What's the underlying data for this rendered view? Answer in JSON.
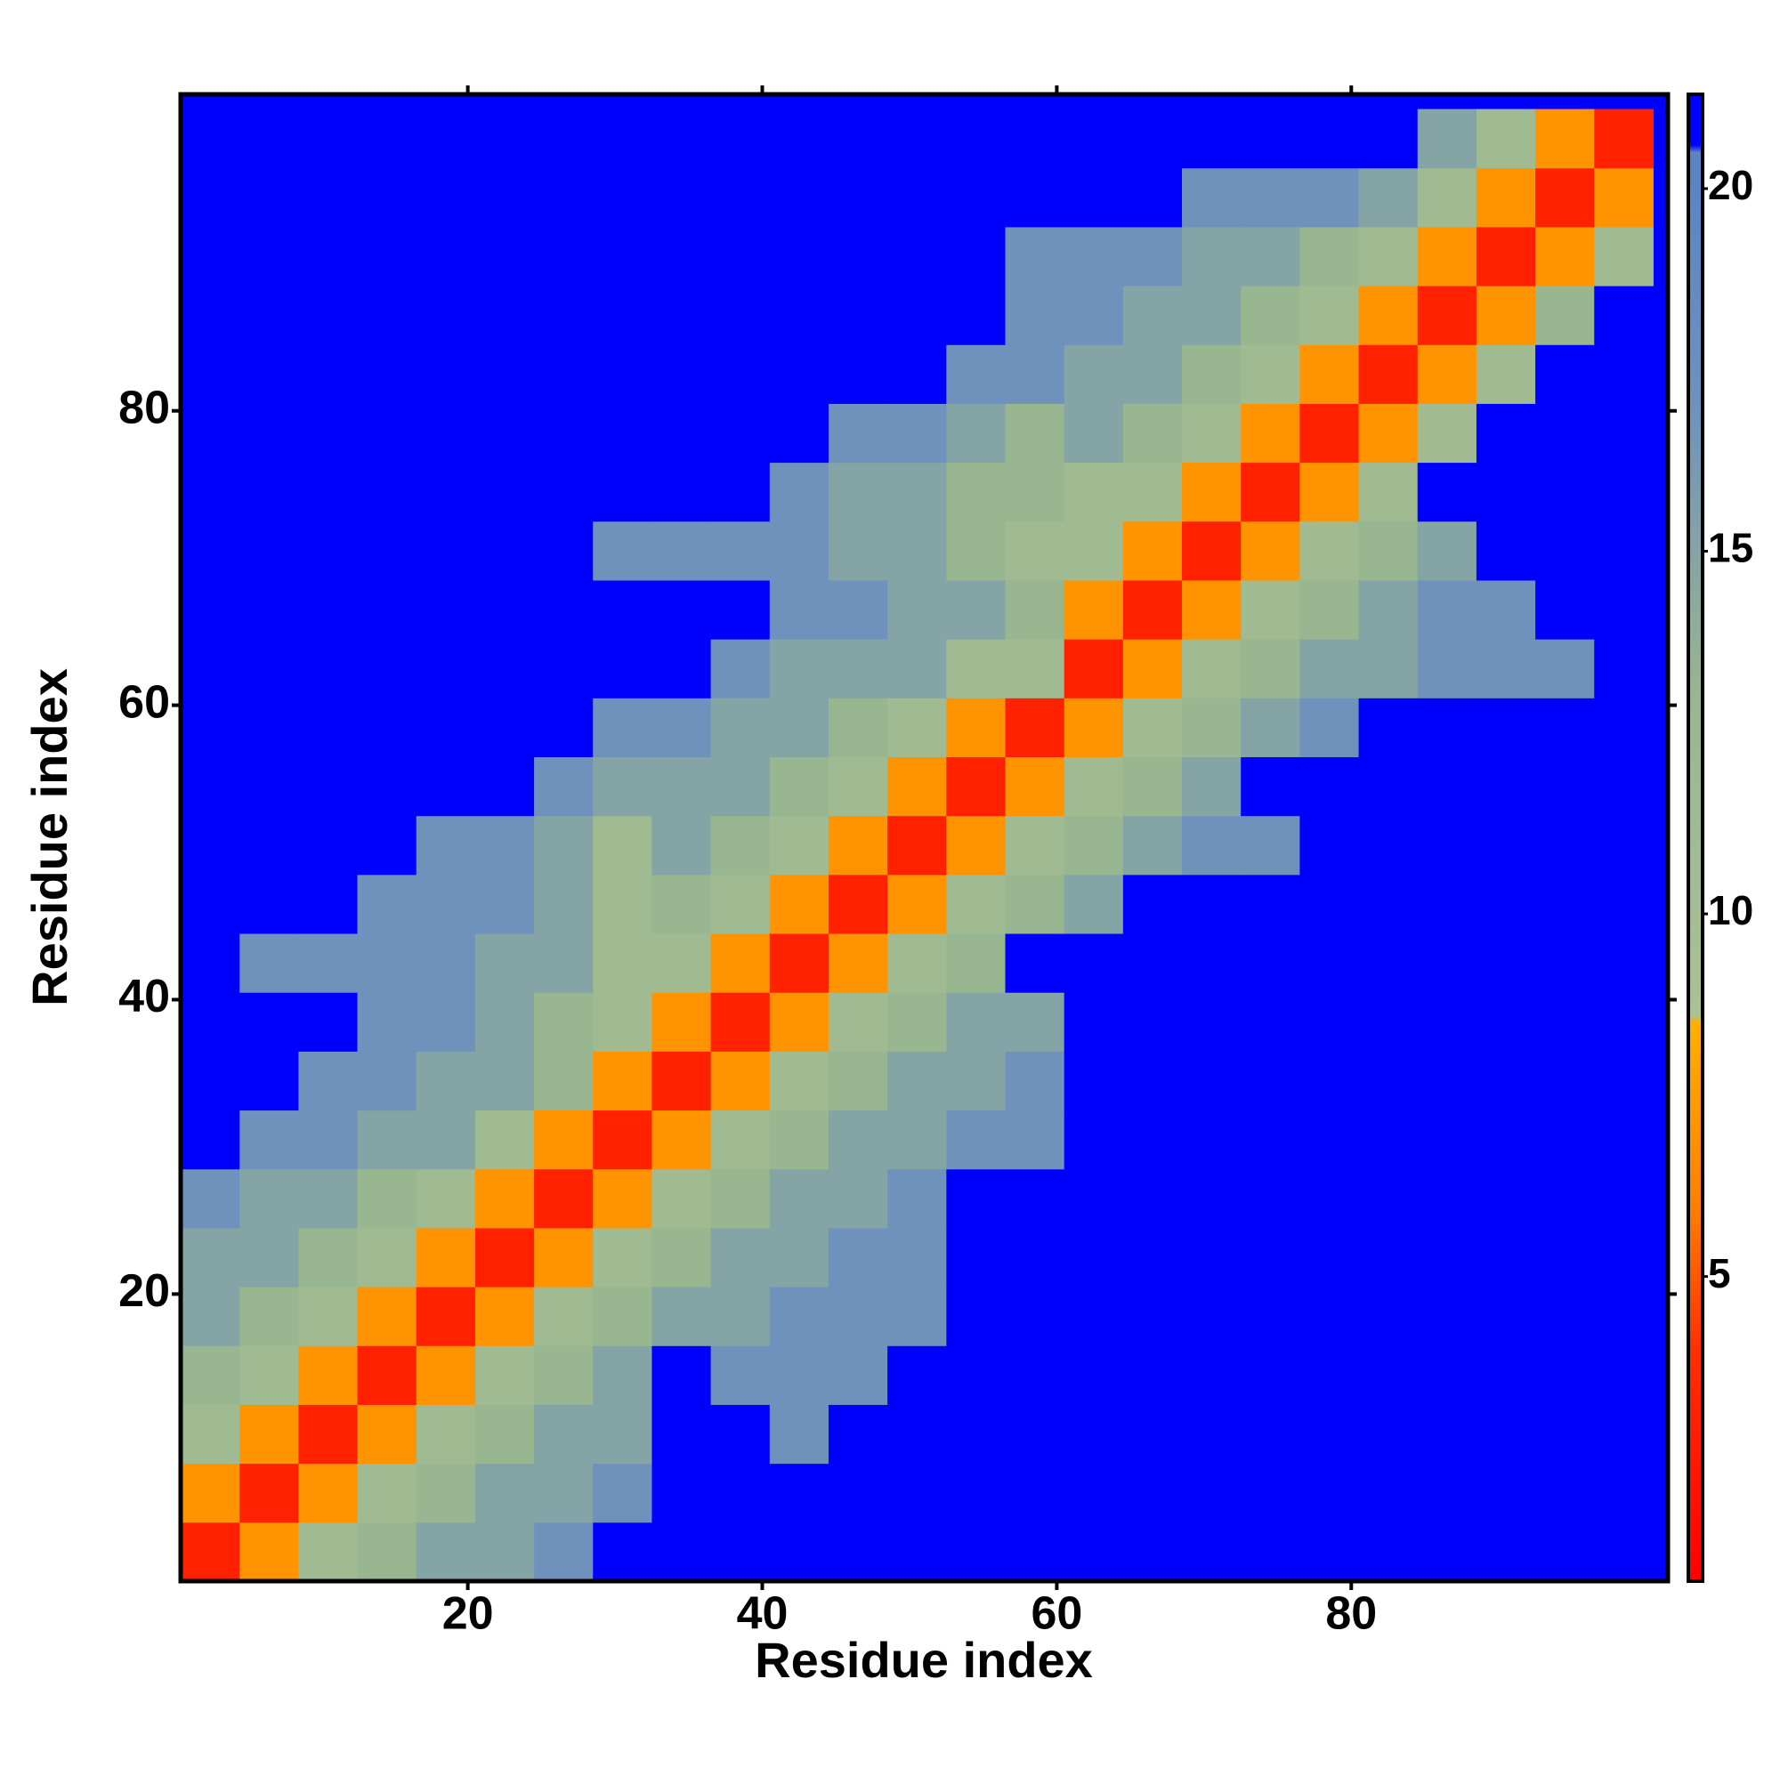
{
  "chart_data": {
    "type": "heatmap",
    "xlabel": "Residue index",
    "ylabel": "Residue index",
    "xlim": [
      0.5,
      101.5
    ],
    "ylim": [
      0.5,
      101.5
    ],
    "xticks": [
      20,
      40,
      60,
      80
    ],
    "yticks": [
      20,
      40,
      60,
      80
    ],
    "xbins": [
      0.5,
      4.5,
      8.5,
      12.5,
      16.5,
      20.5,
      24.5,
      28.5,
      32.5,
      36.5,
      40.5,
      44.5,
      48.5,
      52.5,
      56.5,
      60.5,
      64.5,
      68.5,
      72.5,
      76.5,
      80.5,
      84.5,
      88.5,
      92.5,
      96.5,
      100.5
    ],
    "ybins": [
      0.5,
      4.5,
      8.5,
      12.5,
      16.5,
      20.5,
      24.5,
      28.5,
      32.5,
      36.5,
      40.5,
      44.5,
      48.5,
      52.5,
      56.5,
      60.5,
      64.5,
      68.5,
      72.5,
      76.5,
      80.5,
      84.5,
      88.5,
      92.5,
      96.5,
      100.5
    ],
    "zlim": [
      0.8,
      21.3
    ],
    "zticks": [
      5,
      10,
      15,
      20
    ],
    "background_color": "#0000ff",
    "colorscale": [
      [
        0.8,
        "#ff0000"
      ],
      [
        4,
        "#ff3000"
      ],
      [
        6,
        "#ff8000"
      ],
      [
        8.5,
        "#ffb000"
      ],
      [
        8.6,
        "#a9c293"
      ],
      [
        13,
        "#98b68f"
      ],
      [
        17,
        "#6f92bd"
      ],
      [
        20.5,
        "#5a82c4"
      ],
      [
        20.6,
        "#0000ff"
      ],
      [
        21.3,
        "#0000ff"
      ]
    ],
    "z": [
      [
        3,
        7,
        11,
        13,
        15,
        15,
        17,
        21,
        21,
        21,
        21,
        21,
        21,
        21,
        21,
        21,
        21,
        21,
        21,
        21,
        21,
        21,
        21,
        21,
        21
      ],
      [
        7,
        3,
        7,
        11,
        13,
        15,
        15,
        17,
        21,
        21,
        21,
        21,
        21,
        21,
        21,
        21,
        21,
        21,
        21,
        21,
        21,
        21,
        21,
        21,
        21
      ],
      [
        11,
        7,
        3,
        7,
        11,
        13,
        15,
        15,
        21,
        21,
        17,
        21,
        21,
        21,
        21,
        21,
        21,
        21,
        21,
        21,
        21,
        21,
        21,
        21,
        21
      ],
      [
        13,
        11,
        7,
        3,
        7,
        11,
        13,
        15,
        21,
        17,
        17,
        17,
        21,
        21,
        21,
        21,
        21,
        21,
        21,
        21,
        21,
        21,
        21,
        21,
        21
      ],
      [
        15,
        13,
        11,
        7,
        3,
        7,
        11,
        13,
        15,
        15,
        17,
        17,
        17,
        21,
        21,
        21,
        21,
        21,
        21,
        21,
        21,
        21,
        21,
        21,
        21
      ],
      [
        15,
        15,
        13,
        11,
        7,
        3,
        7,
        11,
        13,
        15,
        15,
        17,
        17,
        21,
        21,
        21,
        21,
        21,
        21,
        21,
        21,
        21,
        21,
        21,
        21
      ],
      [
        17,
        15,
        15,
        13,
        11,
        7,
        3,
        7,
        11,
        13,
        15,
        15,
        17,
        21,
        21,
        21,
        21,
        21,
        21,
        21,
        21,
        21,
        21,
        21,
        21
      ],
      [
        21,
        17,
        17,
        15,
        15,
        11,
        7,
        3,
        7,
        11,
        13,
        15,
        15,
        17,
        17,
        21,
        21,
        21,
        21,
        21,
        21,
        21,
        21,
        21,
        21
      ],
      [
        21,
        21,
        17,
        17,
        15,
        15,
        13,
        7,
        3,
        7,
        11,
        13,
        15,
        15,
        17,
        21,
        21,
        21,
        21,
        21,
        21,
        21,
        21,
        21,
        21
      ],
      [
        21,
        21,
        21,
        17,
        17,
        15,
        13,
        11,
        7,
        3,
        7,
        11,
        13,
        15,
        15,
        21,
        21,
        21,
        21,
        21,
        21,
        21,
        21,
        21,
        21
      ],
      [
        21,
        17,
        17,
        17,
        17,
        15,
        15,
        11,
        11,
        7,
        3,
        7,
        11,
        13,
        21,
        21,
        21,
        21,
        21,
        21,
        21,
        21,
        21,
        21,
        21
      ],
      [
        21,
        21,
        21,
        17,
        17,
        17,
        15,
        11,
        13,
        11,
        7,
        3,
        7,
        11,
        13,
        15,
        21,
        21,
        21,
        21,
        21,
        21,
        21,
        21,
        21
      ],
      [
        21,
        21,
        21,
        21,
        17,
        17,
        15,
        11,
        15,
        13,
        11,
        7,
        3,
        7,
        11,
        13,
        15,
        17,
        17,
        21,
        21,
        21,
        21,
        21,
        21
      ],
      [
        21,
        21,
        21,
        21,
        21,
        21,
        17,
        15,
        15,
        15,
        13,
        11,
        7,
        3,
        7,
        11,
        13,
        15,
        21,
        21,
        21,
        21,
        21,
        21,
        21
      ],
      [
        21,
        21,
        21,
        21,
        21,
        21,
        21,
        17,
        17,
        15,
        15,
        13,
        11,
        7,
        3,
        7,
        11,
        13,
        15,
        17,
        21,
        21,
        21,
        21,
        21
      ],
      [
        21,
        21,
        21,
        21,
        21,
        21,
        21,
        21,
        21,
        17,
        15,
        15,
        15,
        11,
        11,
        3,
        7,
        11,
        13,
        15,
        15,
        17,
        17,
        17,
        21
      ],
      [
        21,
        21,
        21,
        21,
        21,
        21,
        21,
        21,
        21,
        21,
        17,
        17,
        15,
        15,
        13,
        7,
        3,
        7,
        11,
        13,
        15,
        17,
        17,
        21,
        21
      ],
      [
        21,
        21,
        21,
        21,
        21,
        21,
        21,
        17,
        17,
        17,
        17,
        15,
        15,
        13,
        11,
        11,
        7,
        3,
        7,
        11,
        13,
        15,
        21,
        21,
        21
      ],
      [
        21,
        21,
        21,
        21,
        21,
        21,
        21,
        21,
        21,
        21,
        17,
        15,
        15,
        13,
        13,
        11,
        11,
        7,
        3,
        7,
        11,
        21,
        21,
        21,
        21
      ],
      [
        21,
        21,
        21,
        21,
        21,
        21,
        21,
        21,
        21,
        21,
        21,
        17,
        17,
        15,
        13,
        15,
        13,
        11,
        7,
        3,
        7,
        11,
        21,
        21,
        21
      ],
      [
        21,
        21,
        21,
        21,
        21,
        21,
        21,
        21,
        21,
        21,
        21,
        21,
        21,
        17,
        17,
        15,
        15,
        13,
        11,
        7,
        3,
        7,
        11,
        21,
        21
      ],
      [
        21,
        21,
        21,
        21,
        21,
        21,
        21,
        21,
        21,
        21,
        21,
        21,
        21,
        21,
        17,
        17,
        15,
        15,
        13,
        11,
        7,
        3,
        7,
        13,
        21
      ],
      [
        21,
        21,
        21,
        21,
        21,
        21,
        21,
        21,
        21,
        21,
        21,
        21,
        21,
        21,
        17,
        17,
        17,
        15,
        15,
        13,
        11,
        7,
        3,
        7,
        11
      ],
      [
        21,
        21,
        21,
        21,
        21,
        21,
        21,
        21,
        21,
        21,
        21,
        21,
        21,
        21,
        21,
        21,
        21,
        17,
        17,
        17,
        15,
        11,
        7,
        3,
        7
      ],
      [
        21,
        21,
        21,
        21,
        21,
        21,
        21,
        21,
        21,
        21,
        21,
        21,
        21,
        21,
        21,
        21,
        21,
        21,
        21,
        21,
        21,
        15,
        11,
        7,
        3
      ]
    ]
  }
}
